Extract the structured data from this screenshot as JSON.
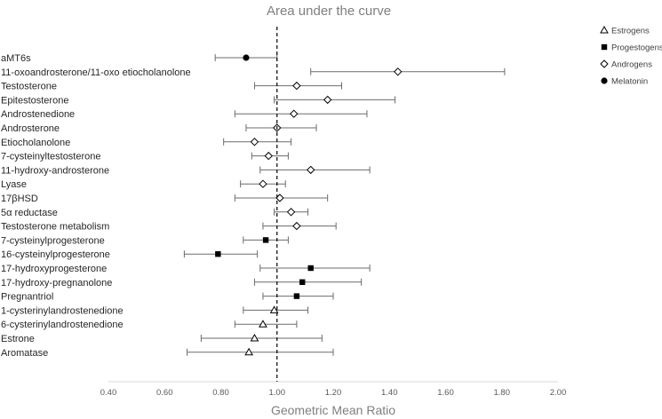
{
  "chart_data": {
    "type": "forest",
    "title": "Area under the curve",
    "xlabel": "Geometric Mean Ratio",
    "ylabel": "",
    "xlim": [
      0.4,
      2.0
    ],
    "xticks": [
      0.4,
      0.6,
      0.8,
      1.0,
      1.2,
      1.4,
      1.6,
      1.8,
      2.0
    ],
    "xtick_labels": [
      "0.40",
      "0.60",
      "0.80",
      "1.00",
      "1.20",
      "1.40",
      "1.60",
      "1.80",
      "2.00"
    ],
    "reference_line": 1.0,
    "legend": [
      {
        "name": "Estrogens",
        "marker": "triangle-open"
      },
      {
        "name": "Progestogens",
        "marker": "square-filled"
      },
      {
        "name": "Androgens",
        "marker": "diamond-open"
      },
      {
        "name": "Melatonin",
        "marker": "circle-filled"
      }
    ],
    "legend_position": "top-right",
    "rows": [
      {
        "label": "aMT6s",
        "group": "Melatonin",
        "estimate": 0.89,
        "lower": 0.78,
        "upper": 1.0
      },
      {
        "label": "11-oxoandrosterone/11-oxo etiocholanolone",
        "group": "Androgens",
        "estimate": 1.43,
        "lower": 1.12,
        "upper": 1.81
      },
      {
        "label": "Testosterone",
        "group": "Androgens",
        "estimate": 1.07,
        "lower": 0.92,
        "upper": 1.23
      },
      {
        "label": "Epitestosterone",
        "group": "Androgens",
        "estimate": 1.18,
        "lower": 0.99,
        "upper": 1.42
      },
      {
        "label": "Androstenedione",
        "group": "Androgens",
        "estimate": 1.06,
        "lower": 0.85,
        "upper": 1.32
      },
      {
        "label": "Androsterone",
        "group": "Androgens",
        "estimate": 1.0,
        "lower": 0.89,
        "upper": 1.14
      },
      {
        "label": "Etiocholanolone",
        "group": "Androgens",
        "estimate": 0.92,
        "lower": 0.81,
        "upper": 1.05
      },
      {
        "label": "7-cysteinyltestosterone",
        "group": "Androgens",
        "estimate": 0.97,
        "lower": 0.91,
        "upper": 1.04
      },
      {
        "label": "11-hydroxy-androsterone",
        "group": "Androgens",
        "estimate": 1.12,
        "lower": 0.94,
        "upper": 1.33
      },
      {
        "label": "Lyase",
        "group": "Androgens",
        "estimate": 0.95,
        "lower": 0.87,
        "upper": 1.03
      },
      {
        "label": "17βHSD",
        "group": "Androgens",
        "estimate": 1.01,
        "lower": 0.85,
        "upper": 1.18
      },
      {
        "label": "5α reductase",
        "group": "Androgens",
        "estimate": 1.05,
        "lower": 0.99,
        "upper": 1.11
      },
      {
        "label": "Testosterone metabolism",
        "group": "Androgens",
        "estimate": 1.07,
        "lower": 0.95,
        "upper": 1.21
      },
      {
        "label": "7-cysteinylprogesterone",
        "group": "Progestogens",
        "estimate": 0.96,
        "lower": 0.88,
        "upper": 1.04
      },
      {
        "label": "16-cysteinylprogesterone",
        "group": "Progestogens",
        "estimate": 0.79,
        "lower": 0.67,
        "upper": 0.93
      },
      {
        "label": "17-hydroxyprogesterone",
        "group": "Progestogens",
        "estimate": 1.12,
        "lower": 0.94,
        "upper": 1.33
      },
      {
        "label": "17-hydroxy-pregnanolone",
        "group": "Progestogens",
        "estimate": 1.09,
        "lower": 0.92,
        "upper": 1.3
      },
      {
        "label": "Pregnantriol",
        "group": "Progestogens",
        "estimate": 1.07,
        "lower": 0.95,
        "upper": 1.2
      },
      {
        "label": "1-cysterinylandrostenedione",
        "group": "Estrogens",
        "estimate": 0.99,
        "lower": 0.88,
        "upper": 1.11
      },
      {
        "label": "6-cysterinylandrostenedione",
        "group": "Estrogens",
        "estimate": 0.95,
        "lower": 0.85,
        "upper": 1.07
      },
      {
        "label": "Estrone",
        "group": "Estrogens",
        "estimate": 0.92,
        "lower": 0.73,
        "upper": 1.16
      },
      {
        "label": "Aromatase",
        "group": "Estrogens",
        "estimate": 0.9,
        "lower": 0.68,
        "upper": 1.2
      }
    ]
  }
}
